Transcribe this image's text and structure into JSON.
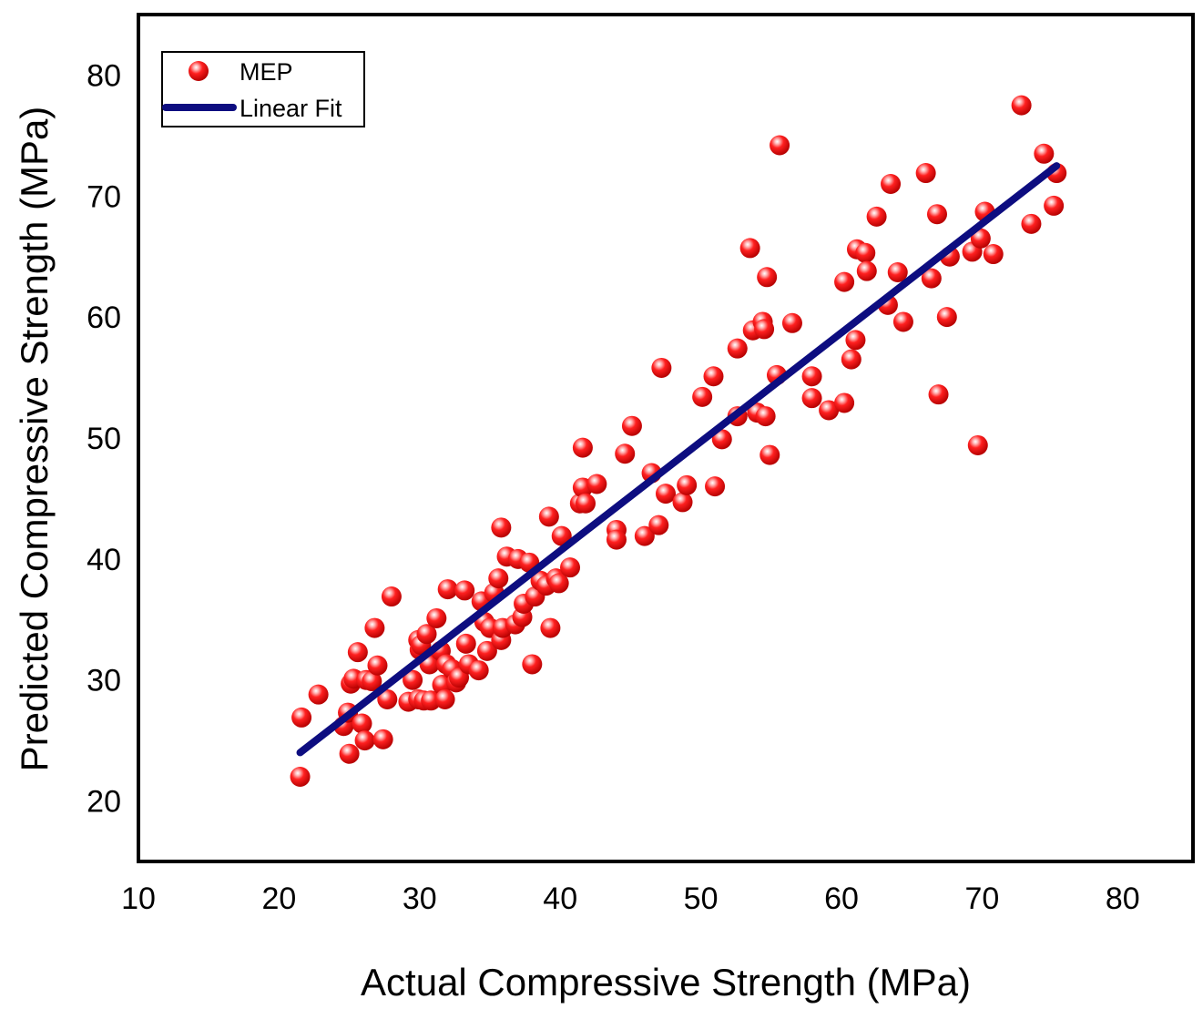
{
  "chart_data": {
    "type": "scatter",
    "title": "",
    "xlabel": "Actual Compressive Strength (MPa)",
    "ylabel": "Predicted Compressive Strength (MPa)",
    "xlim": [
      10,
      85
    ],
    "ylim": [
      15,
      85
    ],
    "xticks": [
      10,
      20,
      30,
      40,
      50,
      60,
      70,
      80
    ],
    "yticks": [
      20,
      30,
      40,
      50,
      60,
      70,
      80
    ],
    "grid": false,
    "legend_position": "top-left",
    "colors": {
      "points": "#ff1a1a",
      "fit_line": "#0d0d80",
      "frame": "#000000"
    },
    "series": [
      {
        "name": "MEP",
        "kind": "scatter",
        "points": [
          [
            21.5,
            22.0
          ],
          [
            21.6,
            26.9
          ],
          [
            22.8,
            28.8
          ],
          [
            24.6,
            26.2
          ],
          [
            24.9,
            27.3
          ],
          [
            25.0,
            23.9
          ],
          [
            25.1,
            29.7
          ],
          [
            25.3,
            30.1
          ],
          [
            25.6,
            32.3
          ],
          [
            25.9,
            26.4
          ],
          [
            26.1,
            25.0
          ],
          [
            26.2,
            30.0
          ],
          [
            26.6,
            29.9
          ],
          [
            26.8,
            34.3
          ],
          [
            27.0,
            31.2
          ],
          [
            27.4,
            25.1
          ],
          [
            27.7,
            28.4
          ],
          [
            28.0,
            36.9
          ],
          [
            29.2,
            28.2
          ],
          [
            29.5,
            30.0
          ],
          [
            29.9,
            28.4
          ],
          [
            29.9,
            33.3
          ],
          [
            30.0,
            32.5
          ],
          [
            30.1,
            32.9
          ],
          [
            30.3,
            28.3
          ],
          [
            30.5,
            33.8
          ],
          [
            30.7,
            31.3
          ],
          [
            30.8,
            28.3
          ],
          [
            31.2,
            35.1
          ],
          [
            31.5,
            32.4
          ],
          [
            31.6,
            29.6
          ],
          [
            31.8,
            28.4
          ],
          [
            31.9,
            31.3
          ],
          [
            32.0,
            37.5
          ],
          [
            32.3,
            30.9
          ],
          [
            32.6,
            29.8
          ],
          [
            32.8,
            30.2
          ],
          [
            33.2,
            37.4
          ],
          [
            33.3,
            33.0
          ],
          [
            33.5,
            31.3
          ],
          [
            34.2,
            30.8
          ],
          [
            34.4,
            36.5
          ],
          [
            34.6,
            34.8
          ],
          [
            34.8,
            32.4
          ],
          [
            35.0,
            34.3
          ],
          [
            35.3,
            37.2
          ],
          [
            35.6,
            38.4
          ],
          [
            35.8,
            42.6
          ],
          [
            35.8,
            33.3
          ],
          [
            35.9,
            34.3
          ],
          [
            36.2,
            40.2
          ],
          [
            36.8,
            34.6
          ],
          [
            37.0,
            40.0
          ],
          [
            37.3,
            35.2
          ],
          [
            37.4,
            36.3
          ],
          [
            37.8,
            39.7
          ],
          [
            38.0,
            31.3
          ],
          [
            38.2,
            36.9
          ],
          [
            38.6,
            38.2
          ],
          [
            39.0,
            37.8
          ],
          [
            39.2,
            43.5
          ],
          [
            39.3,
            34.3
          ],
          [
            39.7,
            38.4
          ],
          [
            39.9,
            38.0
          ],
          [
            40.1,
            41.9
          ],
          [
            40.7,
            39.3
          ],
          [
            41.4,
            44.6
          ],
          [
            41.6,
            45.9
          ],
          [
            41.6,
            49.2
          ],
          [
            41.8,
            44.6
          ],
          [
            42.6,
            46.2
          ],
          [
            44.0,
            42.4
          ],
          [
            44.0,
            41.6
          ],
          [
            44.6,
            48.7
          ],
          [
            45.1,
            51.0
          ],
          [
            46.0,
            41.9
          ],
          [
            46.5,
            47.1
          ],
          [
            47.0,
            42.8
          ],
          [
            47.2,
            55.8
          ],
          [
            47.5,
            45.4
          ],
          [
            48.7,
            44.7
          ],
          [
            49.0,
            46.1
          ],
          [
            50.1,
            53.4
          ],
          [
            50.9,
            55.1
          ],
          [
            51.0,
            46.0
          ],
          [
            51.5,
            49.9
          ],
          [
            52.6,
            51.8
          ],
          [
            52.6,
            57.4
          ],
          [
            53.5,
            65.7
          ],
          [
            53.7,
            58.9
          ],
          [
            54.0,
            52.1
          ],
          [
            54.4,
            59.6
          ],
          [
            54.5,
            59.0
          ],
          [
            54.6,
            51.8
          ],
          [
            54.7,
            63.3
          ],
          [
            54.9,
            48.6
          ],
          [
            55.4,
            55.2
          ],
          [
            55.6,
            74.2
          ],
          [
            56.5,
            59.5
          ],
          [
            57.9,
            55.1
          ],
          [
            57.9,
            53.3
          ],
          [
            59.1,
            52.3
          ],
          [
            60.2,
            62.9
          ],
          [
            60.2,
            52.9
          ],
          [
            60.7,
            56.5
          ],
          [
            61.0,
            58.1
          ],
          [
            61.1,
            65.6
          ],
          [
            61.7,
            65.3
          ],
          [
            61.8,
            63.8
          ],
          [
            62.5,
            68.3
          ],
          [
            63.3,
            61.0
          ],
          [
            63.5,
            71.0
          ],
          [
            64.0,
            63.7
          ],
          [
            64.4,
            59.6
          ],
          [
            66.0,
            71.9
          ],
          [
            66.4,
            63.2
          ],
          [
            66.8,
            68.5
          ],
          [
            66.9,
            53.6
          ],
          [
            67.5,
            60.0
          ],
          [
            67.7,
            65.0
          ],
          [
            69.3,
            65.4
          ],
          [
            69.7,
            49.4
          ],
          [
            69.9,
            66.5
          ],
          [
            70.2,
            68.7
          ],
          [
            70.8,
            65.2
          ],
          [
            72.8,
            77.5
          ],
          [
            73.5,
            67.7
          ],
          [
            74.4,
            73.5
          ],
          [
            75.1,
            69.2
          ],
          [
            75.3,
            71.9
          ]
        ]
      },
      {
        "name": "Linear Fit",
        "kind": "line",
        "points": [
          [
            21.5,
            24.0
          ],
          [
            75.3,
            72.5
          ]
        ]
      }
    ]
  }
}
